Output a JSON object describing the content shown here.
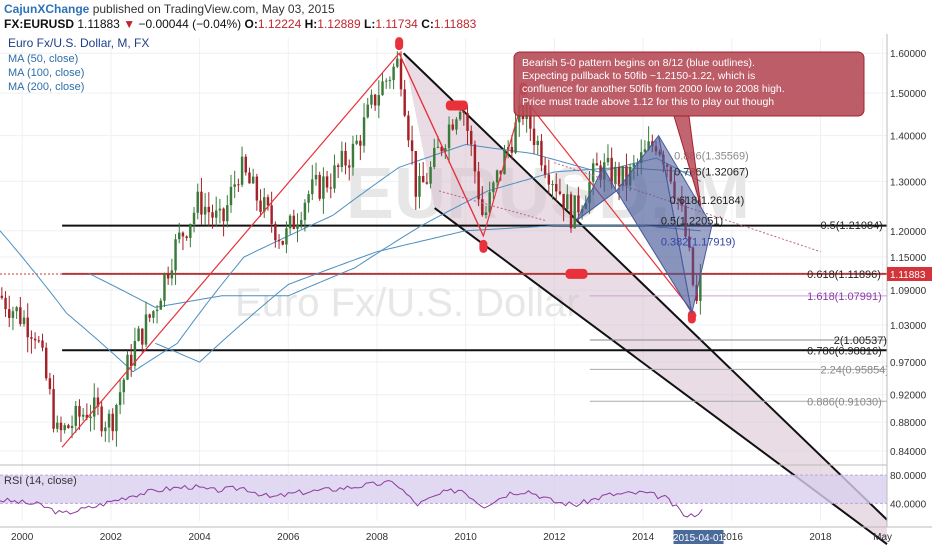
{
  "header": {
    "author": "CajunXChange",
    "published_text": "published on TradingView.com, May 03, 2015",
    "symbol": "FX:EURUSD",
    "last": "1.11883",
    "arrow": "▼",
    "change": "−0.00044 (−0.04%)",
    "open_label": "O:",
    "open": "1.12224",
    "high_label": "H:",
    "high": "1.12889",
    "low_label": "L:",
    "low": "1.11734",
    "close_label": "C:",
    "close": "1.11883"
  },
  "legend": {
    "title": "Euro Fx/U.S. Dollar, M, FX",
    "ma": [
      "MA (50, close)",
      "MA (100, close)",
      "MA (200, close)"
    ]
  },
  "watermark": {
    "line1": "EURUSD, M",
    "line2": "Euro Fx/U.S. Dollar"
  },
  "annotation": "Bearish 5-0 pattern begins on 8/12 (blue outlines). Expecting pullback to 50fib ~1.2150-1.22, which is confluence for another 50fib from 2000 low to 2008 high. Price must trade above 1.12 for this to play out though",
  "colors": {
    "up": "#3a7a3a",
    "down": "#a32127",
    "channel": "#d7bfd0",
    "pattern": "#4a5a9a",
    "ma": "#4d8fbf",
    "rsi_band": "#d8d0ee",
    "rsi_line": "#8e3a9e",
    "price_tag": "#d2343a",
    "red_line": "#e8313b"
  },
  "price_tag": "1.11883",
  "rsi_label": "RSI (14, close)",
  "time_marker": "2015-04-01",
  "chart_data": {
    "type": "candlestick",
    "xlim": [
      1999.5,
      2019.5
    ],
    "ylim": [
      0.825,
      1.64
    ],
    "y_scale": "log",
    "y_ticks": [
      1.6,
      1.5,
      1.4,
      1.3,
      1.2,
      1.15,
      1.09,
      1.03,
      0.97,
      0.92,
      0.88,
      0.84
    ],
    "y_tick_labels": [
      "1.60000",
      "1.50000",
      "1.40000",
      "1.30000",
      "1.20000",
      "1.15000",
      "1.09000",
      "1.03000",
      "0.97000",
      "0.92000",
      "0.88000",
      "0.84000"
    ],
    "x_ticks": [
      2000,
      2002,
      2004,
      2006,
      2008,
      2010,
      2012,
      2014,
      2016,
      2018,
      2019.4
    ],
    "x_tick_labels": [
      "2000",
      "2002",
      "2004",
      "2006",
      "2008",
      "2010",
      "2012",
      "2014",
      "2016",
      "2018",
      "May"
    ],
    "price_path": [
      [
        1999.5,
        1.08
      ],
      [
        2000.3,
        1.02
      ],
      [
        2000.8,
        0.86
      ],
      [
        2001.5,
        0.9
      ],
      [
        2002.0,
        0.88
      ],
      [
        2002.5,
        0.99
      ],
      [
        2003.0,
        1.06
      ],
      [
        2003.4,
        1.16
      ],
      [
        2004.0,
        1.26
      ],
      [
        2004.5,
        1.21
      ],
      [
        2004.9,
        1.33
      ],
      [
        2005.4,
        1.25
      ],
      [
        2005.9,
        1.18
      ],
      [
        2006.4,
        1.27
      ],
      [
        2007.0,
        1.31
      ],
      [
        2007.5,
        1.37
      ],
      [
        2008.0,
        1.5
      ],
      [
        2008.5,
        1.58
      ],
      [
        2008.9,
        1.27
      ],
      [
        2009.2,
        1.32
      ],
      [
        2009.9,
        1.49
      ],
      [
        2010.4,
        1.22
      ],
      [
        2010.9,
        1.36
      ],
      [
        2011.3,
        1.46
      ],
      [
        2011.8,
        1.34
      ],
      [
        2012.4,
        1.23
      ],
      [
        2013.0,
        1.33
      ],
      [
        2013.6,
        1.3
      ],
      [
        2014.3,
        1.39
      ],
      [
        2014.6,
        1.33
      ],
      [
        2014.9,
        1.22
      ],
      [
        2015.2,
        1.06
      ],
      [
        2015.33,
        1.1188
      ]
    ],
    "rsi": {
      "ylim": [
        15,
        90
      ],
      "ticks": [
        80,
        40
      ],
      "tick_labels": [
        "80.0000",
        "40.0000"
      ],
      "values": [
        [
          1999.5,
          45
        ],
        [
          2000.4,
          38
        ],
        [
          2000.9,
          25
        ],
        [
          2001.6,
          35
        ],
        [
          2002.5,
          52
        ],
        [
          2003.2,
          60
        ],
        [
          2003.8,
          64
        ],
        [
          2004.3,
          58
        ],
        [
          2005.0,
          62
        ],
        [
          2005.6,
          48
        ],
        [
          2006.2,
          55
        ],
        [
          2007.0,
          60
        ],
        [
          2007.8,
          66
        ],
        [
          2008.4,
          70
        ],
        [
          2008.9,
          38
        ],
        [
          2009.5,
          55
        ],
        [
          2009.9,
          60
        ],
        [
          2010.4,
          36
        ],
        [
          2011.0,
          55
        ],
        [
          2011.4,
          58
        ],
        [
          2012.0,
          42
        ],
        [
          2012.5,
          38
        ],
        [
          2013.2,
          52
        ],
        [
          2014.0,
          55
        ],
        [
          2014.5,
          48
        ],
        [
          2015.0,
          20
        ],
        [
          2015.35,
          30
        ]
      ]
    },
    "horizontal_levels": [
      {
        "y": 1.21,
        "label": ""
      },
      {
        "y": 1.119,
        "label": ""
      },
      {
        "y": 0.9888,
        "label": ""
      }
    ],
    "fib_labels": [
      {
        "text": "0.886(1.35569)",
        "y": 1.35569,
        "x": 2014.7,
        "color": "#888888"
      },
      {
        "text": "0.786(1.32067)",
        "y": 1.32067,
        "x": 2014.7,
        "color": "#222222"
      },
      {
        "text": "0.618(1.26184)",
        "y": 1.26184,
        "x": 2014.6,
        "color": "#222222"
      },
      {
        "text": "0.5(1.22051)",
        "y": 1.22051,
        "x": 2014.4,
        "color": "#222222"
      },
      {
        "text": "0.382(1.17919)",
        "y": 1.17919,
        "x": 2014.4,
        "color": "#3344aa"
      },
      {
        "text": "0.5(1.21084)",
        "y": 1.21084,
        "x": 2018.0,
        "color": "#222222"
      },
      {
        "text": "0.618(1.11896)",
        "y": 1.11896,
        "x": 2017.7,
        "color": "#222222"
      },
      {
        "text": "1.618(1.07991)",
        "y": 1.07991,
        "x": 2017.7,
        "color": "#8a3aa8"
      },
      {
        "text": "2(1.00537)",
        "y": 1.00537,
        "x": 2018.3,
        "color": "#222222"
      },
      {
        "text": "0.786(0.98816)",
        "y": 0.98816,
        "x": 2017.7,
        "color": "#222222"
      },
      {
        "text": "2.24(0.95854)",
        "y": 0.95854,
        "x": 2018.0,
        "color": "#888888"
      },
      {
        "text": "0.886(0.91030)",
        "y": 0.9103,
        "x": 2017.7,
        "color": "#888888"
      }
    ]
  }
}
